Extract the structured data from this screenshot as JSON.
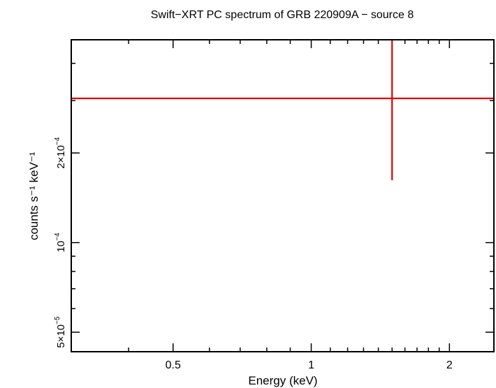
{
  "chart_data": {
    "type": "scatter",
    "title": "Swift−XRT PC spectrum of GRB 220909A − source 8",
    "xlabel": "Energy (keV)",
    "ylabel": "counts s⁻¹ keV⁻¹",
    "xscale": "log",
    "yscale": "log",
    "xlim": [
      0.3,
      2.5
    ],
    "ylim": [
      4.3e-05,
      0.00048
    ],
    "grid": false,
    "x_ticks": [
      {
        "value": 0.5,
        "label": "0.5"
      },
      {
        "value": 1,
        "label": "1"
      },
      {
        "value": 2,
        "label": "2"
      }
    ],
    "y_ticks": [
      {
        "value": 5e-05,
        "mantissa": "5×10",
        "exp": "−5"
      },
      {
        "value": 0.0001,
        "mantissa": "10",
        "exp": "−4"
      },
      {
        "value": 0.0002,
        "mantissa": "2×10",
        "exp": "−4"
      }
    ],
    "series": [
      {
        "color": "#e00000",
        "points": [
          {
            "x": 1.5,
            "xerr_low": 0.3,
            "xerr_high": 2.5,
            "y": 0.000305,
            "yerr_low": 0.000162,
            "yerr_high": 0.00048
          }
        ]
      }
    ]
  }
}
